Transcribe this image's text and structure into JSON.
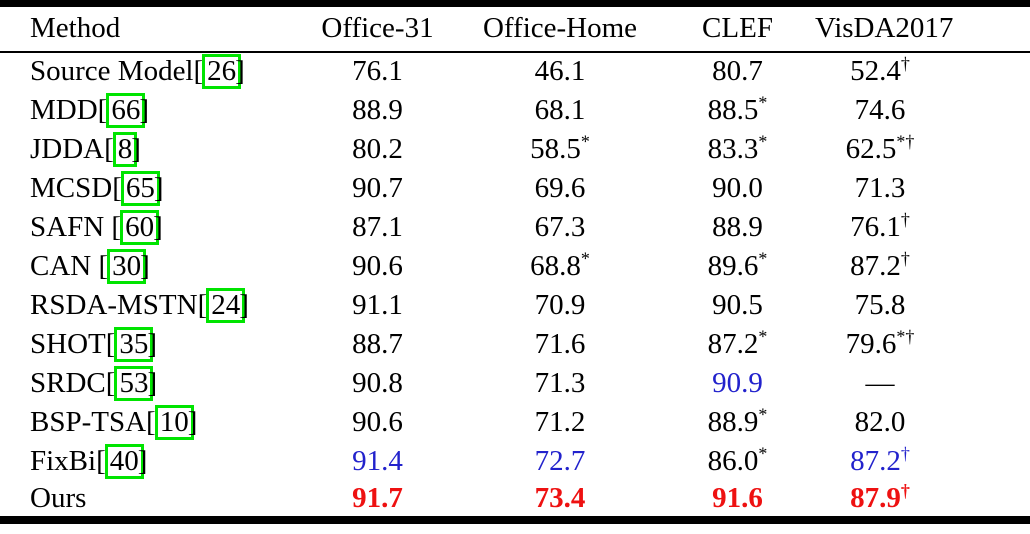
{
  "colors": {
    "accent_blue": "#2222cc",
    "accent_red": "#ee1111",
    "citebox_green": "#00e400",
    "rule_black": "#000000"
  },
  "table": {
    "columns": [
      {
        "label": "Method"
      },
      {
        "label": "Office-31"
      },
      {
        "label": "Office-Home"
      },
      {
        "label": "CLEF"
      },
      {
        "label": "VisDA2017"
      }
    ],
    "rows": [
      {
        "method": "Source Model",
        "cite": "26",
        "cite_space": false,
        "cells": [
          {
            "value": "76.1",
            "sup": "",
            "style": "normal"
          },
          {
            "value": "46.1",
            "sup": "",
            "style": "normal"
          },
          {
            "value": "80.7",
            "sup": "",
            "style": "normal"
          },
          {
            "value": "52.4",
            "sup": "†",
            "style": "normal"
          }
        ]
      },
      {
        "method": "MDD",
        "cite": "66",
        "cite_space": false,
        "cells": [
          {
            "value": "88.9",
            "sup": "",
            "style": "normal"
          },
          {
            "value": "68.1",
            "sup": "",
            "style": "normal"
          },
          {
            "value": "88.5",
            "sup": "*",
            "style": "normal"
          },
          {
            "value": "74.6",
            "sup": "",
            "style": "normal"
          }
        ]
      },
      {
        "method": "JDDA",
        "cite": "8",
        "cite_space": false,
        "cells": [
          {
            "value": "80.2",
            "sup": "",
            "style": "normal"
          },
          {
            "value": "58.5",
            "sup": "*",
            "style": "normal"
          },
          {
            "value": "83.3",
            "sup": "*",
            "style": "normal"
          },
          {
            "value": "62.5",
            "sup": "*†",
            "style": "normal"
          }
        ]
      },
      {
        "method": "MCSD",
        "cite": "65",
        "cite_space": false,
        "cells": [
          {
            "value": "90.7",
            "sup": "",
            "style": "normal"
          },
          {
            "value": "69.6",
            "sup": "",
            "style": "normal"
          },
          {
            "value": "90.0",
            "sup": "",
            "style": "normal"
          },
          {
            "value": "71.3",
            "sup": "",
            "style": "normal"
          }
        ]
      },
      {
        "method": "SAFN",
        "cite": "60",
        "cite_space": true,
        "cells": [
          {
            "value": "87.1",
            "sup": "",
            "style": "normal"
          },
          {
            "value": "67.3",
            "sup": "",
            "style": "normal"
          },
          {
            "value": "88.9",
            "sup": "",
            "style": "normal"
          },
          {
            "value": "76.1",
            "sup": "†",
            "style": "normal"
          }
        ]
      },
      {
        "method": "CAN",
        "cite": "30",
        "cite_space": true,
        "cells": [
          {
            "value": "90.6",
            "sup": "",
            "style": "normal"
          },
          {
            "value": "68.8",
            "sup": "*",
            "style": "normal"
          },
          {
            "value": "89.6",
            "sup": "*",
            "style": "normal"
          },
          {
            "value": "87.2",
            "sup": "†",
            "style": "normal"
          }
        ]
      },
      {
        "method": "RSDA-MSTN",
        "cite": "24",
        "cite_space": false,
        "cells": [
          {
            "value": "91.1",
            "sup": "",
            "style": "normal"
          },
          {
            "value": "70.9",
            "sup": "",
            "style": "normal"
          },
          {
            "value": "90.5",
            "sup": "",
            "style": "normal"
          },
          {
            "value": "75.8",
            "sup": "",
            "style": "normal"
          }
        ]
      },
      {
        "method": "SHOT",
        "cite": "35",
        "cite_space": false,
        "cells": [
          {
            "value": "88.7",
            "sup": "",
            "style": "normal"
          },
          {
            "value": "71.6",
            "sup": "",
            "style": "normal"
          },
          {
            "value": "87.2",
            "sup": "*",
            "style": "normal"
          },
          {
            "value": "79.6",
            "sup": "*†",
            "style": "normal"
          }
        ]
      },
      {
        "method": "SRDC",
        "cite": "53",
        "cite_space": false,
        "cells": [
          {
            "value": "90.8",
            "sup": "",
            "style": "normal"
          },
          {
            "value": "71.3",
            "sup": "",
            "style": "normal"
          },
          {
            "value": "90.9",
            "sup": "",
            "style": "blue"
          },
          {
            "value": "—",
            "sup": "",
            "style": "normal"
          }
        ]
      },
      {
        "method": "BSP-TSA",
        "cite": "10",
        "cite_space": false,
        "cells": [
          {
            "value": "90.6",
            "sup": "",
            "style": "normal"
          },
          {
            "value": "71.2",
            "sup": "",
            "style": "normal"
          },
          {
            "value": "88.9",
            "sup": "*",
            "style": "normal"
          },
          {
            "value": "82.0",
            "sup": "",
            "style": "normal"
          }
        ]
      },
      {
        "method": "FixBi",
        "cite": "40",
        "cite_space": false,
        "cells": [
          {
            "value": "91.4",
            "sup": "",
            "style": "blue"
          },
          {
            "value": "72.7",
            "sup": "",
            "style": "blue"
          },
          {
            "value": "86.0",
            "sup": "*",
            "style": "normal"
          },
          {
            "value": "87.2",
            "sup": "†",
            "style": "blue"
          }
        ]
      },
      {
        "method": "Ours",
        "cite": null,
        "cite_space": false,
        "cells": [
          {
            "value": "91.7",
            "sup": "",
            "style": "red-bold"
          },
          {
            "value": "73.4",
            "sup": "",
            "style": "red-bold"
          },
          {
            "value": "91.6",
            "sup": "",
            "style": "red-bold"
          },
          {
            "value": "87.9",
            "sup": "†",
            "style": "red-bold"
          }
        ]
      }
    ]
  }
}
